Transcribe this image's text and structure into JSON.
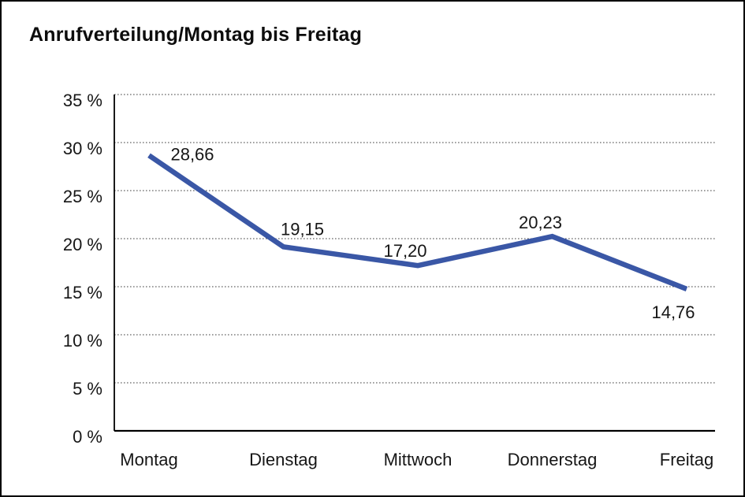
{
  "title": "Anrufverteilung/Montag bis Freitag",
  "chart_data": {
    "type": "line",
    "title": "Anrufverteilung/Montag bis Freitag",
    "categories": [
      "Montag",
      "Dienstag",
      "Mittwoch",
      "Donnerstag",
      "Freitag"
    ],
    "values": [
      28.66,
      19.15,
      17.2,
      20.23,
      14.76
    ],
    "data_labels": [
      "28,66",
      "19,15",
      "17,20",
      "20,23",
      "14,76"
    ],
    "xlabel": "",
    "ylabel": "",
    "ylim": [
      0,
      35
    ],
    "ytick_step": 5,
    "ytick_labels": [
      "0 %",
      "5 %",
      "10 %",
      "15 %",
      "20 %",
      "25 %",
      "30 %",
      "35 %"
    ],
    "grid": "horizontal-dotted",
    "legend": "none",
    "line_color": "#3A57A6",
    "axis_color": "#000000",
    "gridline_color": "#3f3f3f",
    "text_color": "#161616"
  }
}
